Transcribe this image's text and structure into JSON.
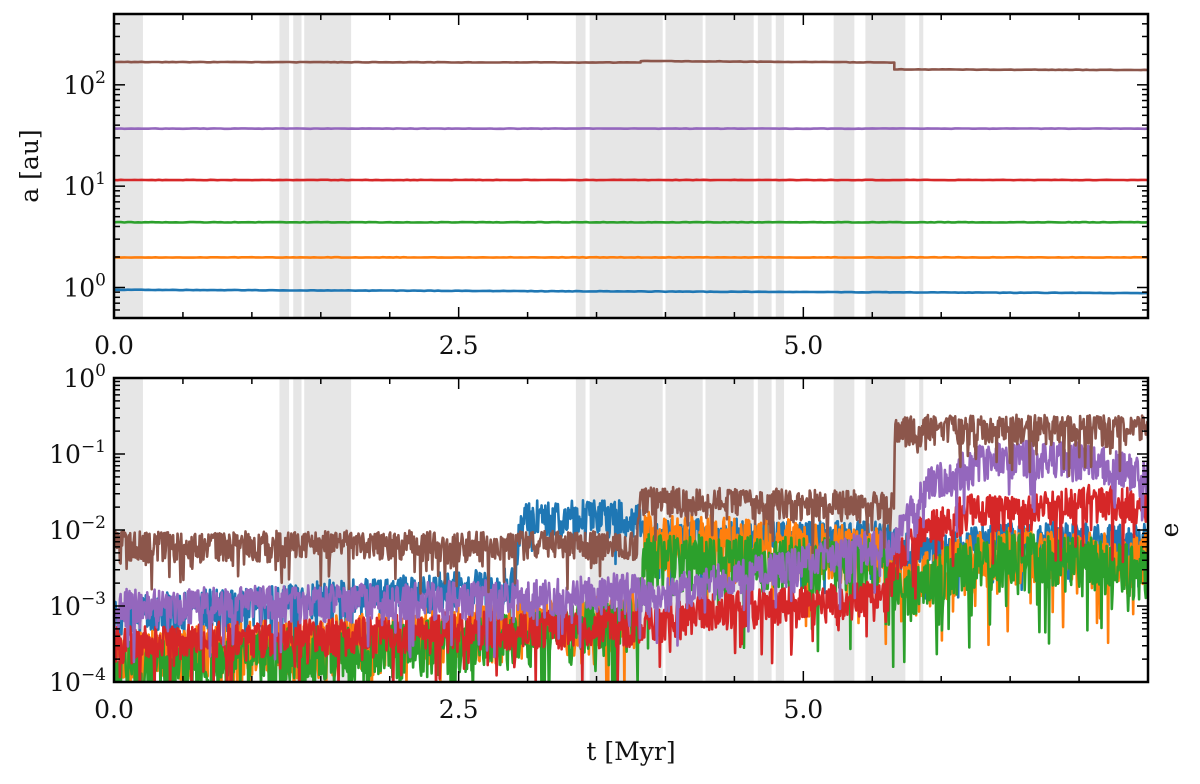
{
  "chart_data": [
    {
      "type": "line",
      "panel": "top",
      "xlabel": "",
      "ylabel": "a [au]",
      "yscale": "log",
      "xlim": [
        0.0,
        7.5
      ],
      "ylim": [
        0.5,
        500
      ],
      "xticks": [
        0.0,
        2.5,
        5.0
      ],
      "xtick_labels": [
        "0.0",
        "2.5",
        "5.0"
      ],
      "yticks": [
        1,
        10,
        100
      ],
      "ytick_labels": [
        {
          "base": "10",
          "exp": "0"
        },
        {
          "base": "10",
          "exp": "1"
        },
        {
          "base": "10",
          "exp": "2"
        }
      ],
      "grid": false,
      "legend": "none",
      "shaded_intervals": [
        [
          0.0,
          0.21
        ],
        [
          1.2,
          1.27
        ],
        [
          1.3,
          1.36
        ],
        [
          1.38,
          1.72
        ],
        [
          3.35,
          3.42
        ],
        [
          3.45,
          3.98
        ],
        [
          4.0,
          4.27
        ],
        [
          4.29,
          4.64
        ],
        [
          4.67,
          4.77
        ],
        [
          4.8,
          4.86
        ],
        [
          5.22,
          5.37
        ],
        [
          5.45,
          5.74
        ],
        [
          5.84,
          5.87
        ]
      ],
      "series": [
        {
          "color": "#1f77b4",
          "x": [
            0.0,
            7.5
          ],
          "y": [
            0.95,
            0.88
          ]
        },
        {
          "color": "#ff7f0e",
          "x": [
            0.0,
            7.5
          ],
          "y": [
            1.98,
            1.98
          ]
        },
        {
          "color": "#2ca02c",
          "x": [
            0.0,
            7.5
          ],
          "y": [
            4.4,
            4.4
          ]
        },
        {
          "color": "#d62728",
          "x": [
            0.0,
            7.5
          ],
          "y": [
            11.5,
            11.5
          ]
        },
        {
          "color": "#9467bd",
          "x": [
            0.0,
            7.5
          ],
          "y": [
            37.0,
            37.0
          ]
        },
        {
          "color": "#8c564b",
          "x": [
            0.0,
            3.82,
            3.82,
            5.66,
            5.66,
            7.5
          ],
          "y": [
            168,
            166,
            172,
            166,
            142,
            140
          ]
        }
      ]
    },
    {
      "type": "line",
      "panel": "bottom",
      "xlabel": "t [Myr]",
      "ylabel": "e",
      "yscale": "log",
      "xlim": [
        0.0,
        7.5
      ],
      "ylim": [
        0.0001,
        1
      ],
      "xticks": [
        0.0,
        2.5,
        5.0
      ],
      "xtick_labels": [
        "0.0",
        "2.5",
        "5.0"
      ],
      "yticks": [
        0.0001,
        0.001,
        0.01,
        0.1,
        1
      ],
      "ytick_labels": [
        {
          "base": "10",
          "exp": "−4"
        },
        {
          "base": "10",
          "exp": "−3"
        },
        {
          "base": "10",
          "exp": "−2"
        },
        {
          "base": "10",
          "exp": "−1"
        },
        {
          "base": "10",
          "exp": "0"
        }
      ],
      "grid": false,
      "legend": "none",
      "shaded_intervals": [
        [
          0.0,
          0.21
        ],
        [
          1.2,
          1.27
        ],
        [
          1.3,
          1.36
        ],
        [
          1.38,
          1.72
        ],
        [
          3.35,
          3.42
        ],
        [
          3.45,
          3.98
        ],
        [
          4.0,
          4.27
        ],
        [
          4.29,
          4.64
        ],
        [
          4.67,
          4.77
        ],
        [
          4.8,
          4.86
        ],
        [
          5.22,
          5.37
        ],
        [
          5.45,
          5.74
        ],
        [
          5.84,
          5.87
        ]
      ],
      "series": [
        {
          "color": "#1f77b4",
          "x": [
            0.0,
            2.9,
            2.95,
            3.8,
            3.85,
            5.6,
            5.7,
            6.5,
            7.5
          ],
          "y": [
            0.0012,
            0.003,
            0.022,
            0.024,
            0.013,
            0.012,
            0.008,
            0.012,
            0.011
          ],
          "noise": 0.5
        },
        {
          "color": "#ff7f0e",
          "x": [
            0.0,
            2.9,
            3.8,
            3.85,
            5.6,
            5.7,
            6.0,
            6.5,
            7.5
          ],
          "y": [
            0.0004,
            0.001,
            0.0015,
            0.015,
            0.01,
            0.003,
            0.006,
            0.01,
            0.008
          ],
          "noise": 0.75
        },
        {
          "color": "#2ca02c",
          "x": [
            0.0,
            2.9,
            3.8,
            3.85,
            5.6,
            5.7,
            6.0,
            6.5,
            7.5
          ],
          "y": [
            0.0003,
            0.0007,
            0.0012,
            0.008,
            0.007,
            0.0025,
            0.005,
            0.009,
            0.006
          ],
          "noise": 0.75
        },
        {
          "color": "#d62728",
          "x": [
            0.0,
            2.9,
            3.8,
            4.5,
            5.6,
            5.66,
            5.9,
            6.2,
            6.6,
            7.0,
            7.3,
            7.5
          ],
          "y": [
            0.0005,
            0.0008,
            0.0009,
            0.0015,
            0.002,
            0.006,
            0.017,
            0.028,
            0.026,
            0.035,
            0.035,
            0.03
          ],
          "noise": 0.5
        },
        {
          "color": "#9467bd",
          "x": [
            0.0,
            2.9,
            3.8,
            3.85,
            5.6,
            5.66,
            5.9,
            6.2,
            6.5,
            6.8,
            7.1,
            7.3,
            7.5
          ],
          "y": [
            0.0015,
            0.002,
            0.0025,
            0.002,
            0.01,
            0.012,
            0.06,
            0.11,
            0.14,
            0.14,
            0.125,
            0.105,
            0.075
          ],
          "noise": 0.5
        },
        {
          "color": "#8c564b",
          "x": [
            0.0,
            3.79,
            3.81,
            5.65,
            5.67,
            7.5
          ],
          "y": [
            0.009,
            0.009,
            0.035,
            0.03,
            0.3,
            0.3
          ],
          "noise": 0.4
        }
      ]
    }
  ]
}
